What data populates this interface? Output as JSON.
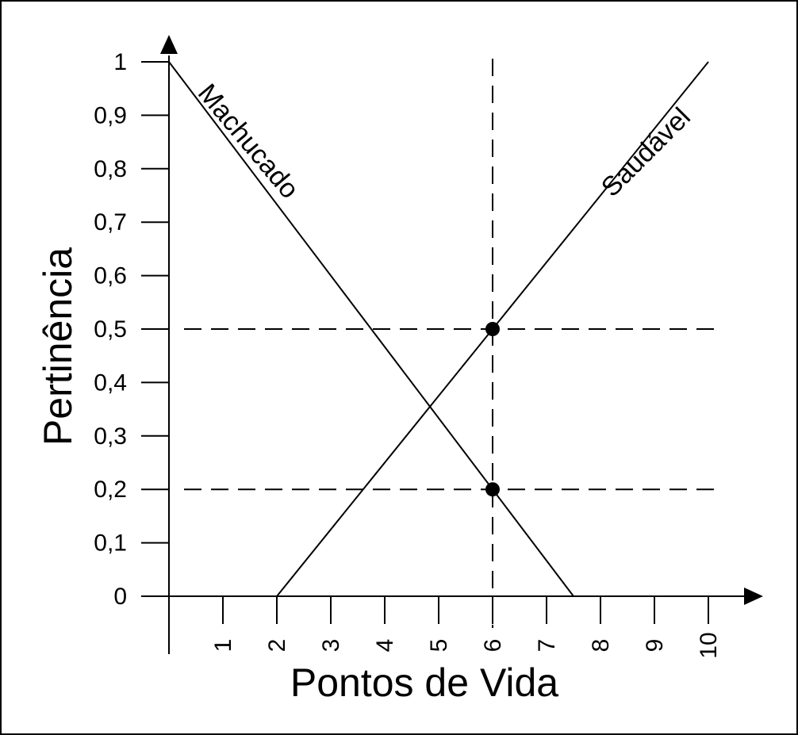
{
  "chart_data": {
    "type": "line",
    "xlabel": "Pontos de Vida",
    "ylabel": "Pertinência",
    "xlim": [
      0,
      10
    ],
    "ylim": [
      0,
      1
    ],
    "x_ticks": [
      "1",
      "2",
      "3",
      "4",
      "5",
      "6",
      "7",
      "8",
      "9",
      "10"
    ],
    "y_ticks": [
      "0",
      "0,1",
      "0,2",
      "0,3",
      "0,4",
      "0,5",
      "0,6",
      "0,7",
      "0,8",
      "0,9",
      "1"
    ],
    "series": [
      {
        "name": "Machucado",
        "x": [
          0,
          7.5
        ],
        "y": [
          1,
          0
        ]
      },
      {
        "name": "Saudável",
        "x": [
          2,
          10
        ],
        "y": [
          0,
          1
        ]
      }
    ],
    "highlight_points": [
      {
        "x": 6,
        "y": 0.5
      },
      {
        "x": 6,
        "y": 0.2
      }
    ],
    "reference_lines": {
      "vertical_x": 6,
      "horizontal_y": [
        0.5,
        0.2
      ]
    },
    "grid": false,
    "colors": {
      "line": "#000000",
      "background": "#ffffff"
    }
  }
}
